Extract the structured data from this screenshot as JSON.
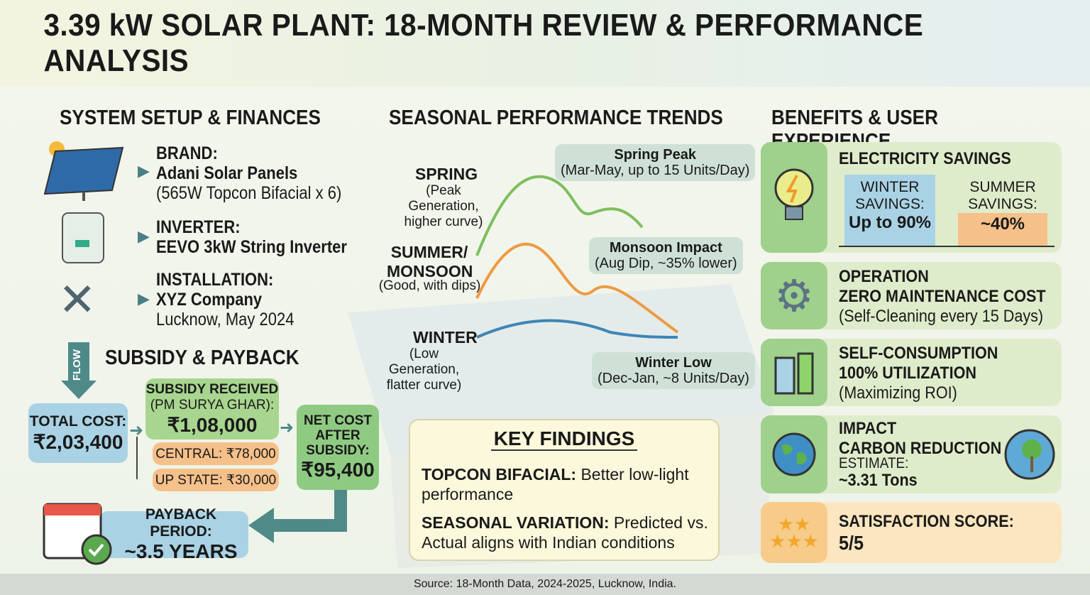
{
  "title": "3.39 kW SOLAR PLANT: 18-MONTH REVIEW & PERFORMANCE ANALYSIS",
  "setup": {
    "heading": "SYSTEM SETUP & FINANCES",
    "brand": {
      "label": "BRAND:",
      "value": "Adani Solar Panels",
      "detail": "(565W Topcon Bifacial x 6)"
    },
    "inverter": {
      "label": "INVERTER:",
      "value": "EEVO 3kW String Inverter"
    },
    "installation": {
      "label": "INSTALLATION:",
      "value": "XYZ Company",
      "detail": "Lucknow, May 2024"
    }
  },
  "subsidy": {
    "heading": "SUBSIDY & PAYBACK",
    "flow": "FLOW",
    "total_label": "TOTAL COST:",
    "total_value": "₹2,03,400",
    "received_label": "SUBSIDY RECEIVED",
    "received_sub": "(PM SURYA GHAR):",
    "received_value": "₹1,08,000",
    "central": "CENTRAL: ₹78,000",
    "state": "UP STATE: ₹30,000",
    "net_label": "NET COST AFTER SUBSIDY:",
    "net_value": "₹95,400",
    "payback_label": "PAYBACK PERIOD:",
    "payback_value": "~3.5 YEARS"
  },
  "seasonal": {
    "heading": "SEASONAL PERFORMANCE TRENDS",
    "spring": {
      "label": "SPRING",
      "desc": "(Peak Generation, higher curve)"
    },
    "summer": {
      "label": "SUMMER/ MONSOON",
      "desc": "(Good, with dips)"
    },
    "winter": {
      "label": "WINTER",
      "desc": "(Low Generation, flatter curve)"
    },
    "callouts": {
      "spring_title": "Spring Peak",
      "spring_detail": "(Mar-May, up to 15 Units/Day)",
      "monsoon_title": "Monsoon Impact",
      "monsoon_detail": "(Aug Dip, ~35% lower)",
      "winter_title": "Winter Low",
      "winter_detail": "(Dec-Jan, ~8 Units/Day)"
    },
    "colors": {
      "spring": "#7dbf5e",
      "summer": "#ee9a42",
      "winter": "#3f84b5"
    }
  },
  "findings": {
    "heading": "KEY FINDINGS",
    "items": [
      {
        "label": "TOPCON BIFACIAL:",
        "text": "Better low-light performance"
      },
      {
        "label": "SEASONAL VARIATION:",
        "text": "Predicted vs. Actual aligns with Indian conditions"
      }
    ]
  },
  "benefits": {
    "heading": "BENEFITS & USER EXPERIENCE",
    "savings": {
      "title": "ELECTRICITY SAVINGS",
      "winter_label": "WINTER SAVINGS:",
      "winter_value": "Up to 90%",
      "summer_label": "SUMMER SAVINGS:",
      "summer_value": "~40%"
    },
    "operation": {
      "title": "OPERATION",
      "subtitle": "ZERO MAINTENANCE COST",
      "detail": "(Self-Cleaning every 15 Days)"
    },
    "consumption": {
      "title": "SELF-CONSUMPTION",
      "subtitle": "100% UTILIZATION",
      "detail": "(Maximizing ROI)"
    },
    "impact": {
      "title": "IMPACT",
      "subtitle": "CARBON REDUCTION",
      "detail": "ESTIMATE:",
      "value": "~3.31 Tons"
    },
    "satisfaction": {
      "title": "SATISFACTION SCORE:",
      "value": "5/5"
    }
  },
  "footer": "Source: 18-Month Data, 2024-2025, Lucknow, India."
}
